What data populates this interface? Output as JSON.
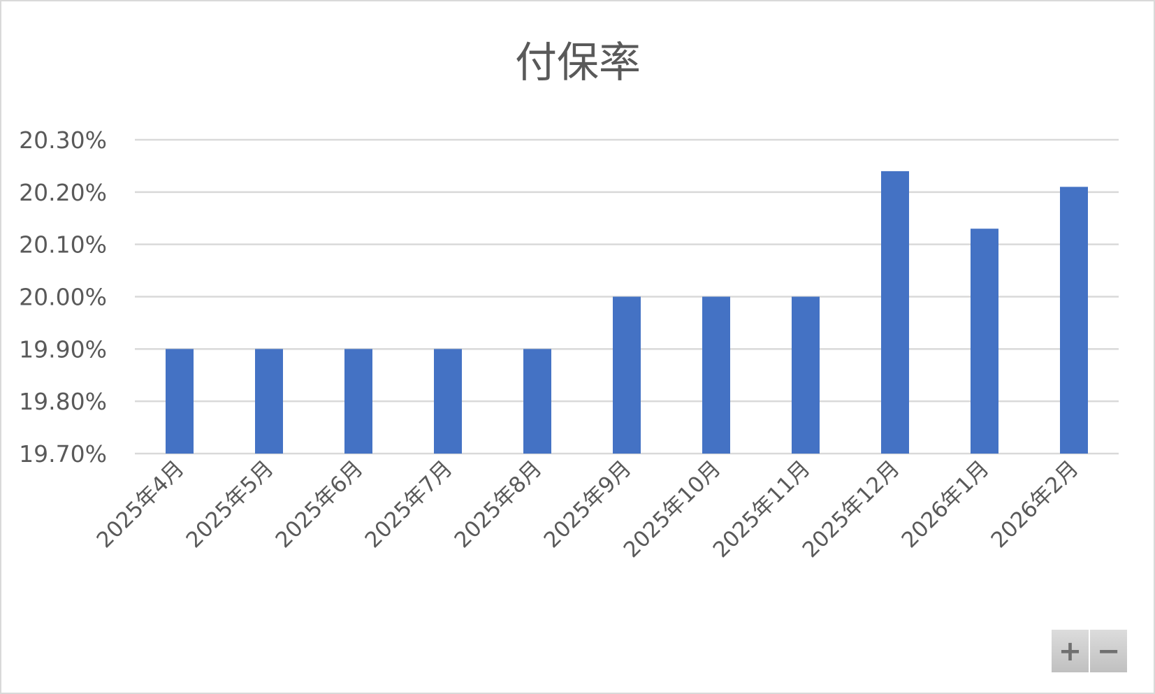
{
  "chart_data": {
    "type": "bar",
    "title": "付保率",
    "categories": [
      "2025年4月",
      "2025年5月",
      "2025年6月",
      "2025年7月",
      "2025年8月",
      "2025年9月",
      "2025年10月",
      "2025年11月",
      "2025年12月",
      "2026年1月",
      "2026年2月"
    ],
    "values": [
      19.9,
      19.9,
      19.9,
      19.9,
      19.9,
      20.0,
      20.0,
      20.0,
      20.24,
      20.13,
      20.21
    ],
    "ylim": [
      19.7,
      20.3
    ],
    "yticks": [
      "19.70%",
      "19.80%",
      "19.90%",
      "20.00%",
      "20.10%",
      "20.20%",
      "20.30%"
    ],
    "xlabel": "",
    "ylabel": "",
    "grid": true,
    "legend": "none",
    "bar_color": "#4472c4"
  },
  "controls": {
    "zoom_in": "+",
    "zoom_out": "−"
  }
}
